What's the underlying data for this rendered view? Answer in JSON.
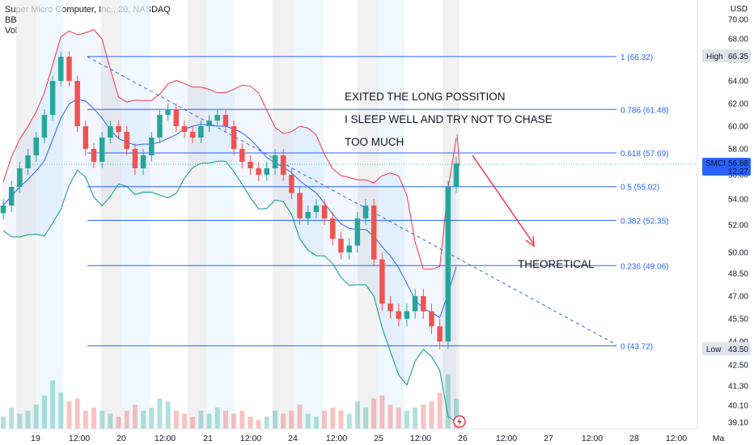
{
  "header": {
    "symbol_line": "Super Micro Computer, Inc., 20, NASDAQ",
    "indicator_bb": "BB",
    "indicator_vol": "Vol"
  },
  "currency": "USD",
  "colors": {
    "up": "#26a69a",
    "down": "#ef5350",
    "fib": "#2962ff",
    "bb_upper": "#f23645",
    "bb_basis": "#2962ff",
    "bb_lower": "#089981",
    "arrow": "#f23645",
    "tag_blue": "#2962ff"
  },
  "chart_data": {
    "type": "candlestick",
    "title": "Super Micro Computer, Inc., 20, NASDAQ",
    "y_axis": {
      "ticks": [
        "70.00",
        "68.00",
        "66.00",
        "64.00",
        "62.00",
        "60.00",
        "58.00",
        "56.00",
        "54.00",
        "52.00",
        "50.00",
        "48.50",
        "47.00",
        "45.50",
        "44.00",
        "42.50",
        "41.30",
        "40.10",
        "39.10"
      ]
    },
    "x_axis": {
      "ticks": [
        "19",
        "12:00",
        "20",
        "12:00",
        "21",
        "12:00",
        "24",
        "12:00",
        "25",
        "12:00",
        "26",
        "12:00",
        "27",
        "12:00",
        "28",
        "12:00",
        "Ma"
      ]
    },
    "fib_levels": [
      {
        "label": "1 (66.32)",
        "price": 66.32
      },
      {
        "label": "0.786 (61.48)",
        "price": 61.48
      },
      {
        "label": "0.618 (57.69)",
        "price": 57.69
      },
      {
        "label": "0.5 (55.02)",
        "price": 55.02
      },
      {
        "label": "0.382 (52.35)",
        "price": 52.35
      },
      {
        "label": "0.236 (49.06)",
        "price": 49.06
      },
      {
        "label": "0 (43.72)",
        "price": 43.72
      }
    ],
    "price_tags": {
      "high": {
        "label": "High",
        "value": "66.35"
      },
      "current": {
        "label": "SMCI",
        "value": "56.88",
        "countdown": "12:27"
      },
      "low": {
        "label": "Low",
        "value": "43.50"
      }
    },
    "annotations": [
      "EXITED THE LONG POSSITION",
      "I SLEEP WELL AND TRY NOT TO CHASE",
      "TOO MUCH",
      "THEORETICAL"
    ],
    "series": [
      {
        "name": "SMCI",
        "approx_closes": [
          53.5,
          55,
          56.5,
          57.5,
          59,
          61,
          64,
          66.3,
          64,
          60,
          58,
          57,
          59,
          60,
          59.5,
          58,
          56.5,
          57.5,
          59,
          61,
          61.5,
          60,
          59.5,
          59,
          60,
          60.5,
          61,
          60,
          58,
          57,
          56.5,
          56,
          56.5,
          57.5,
          56,
          54.5,
          52.5,
          53,
          53.5,
          52.5,
          51,
          50,
          50.5,
          52.5,
          53.5,
          49.5,
          46.5,
          46,
          45.5,
          46,
          47,
          46,
          45,
          44,
          55,
          56.88
        ]
      }
    ]
  }
}
